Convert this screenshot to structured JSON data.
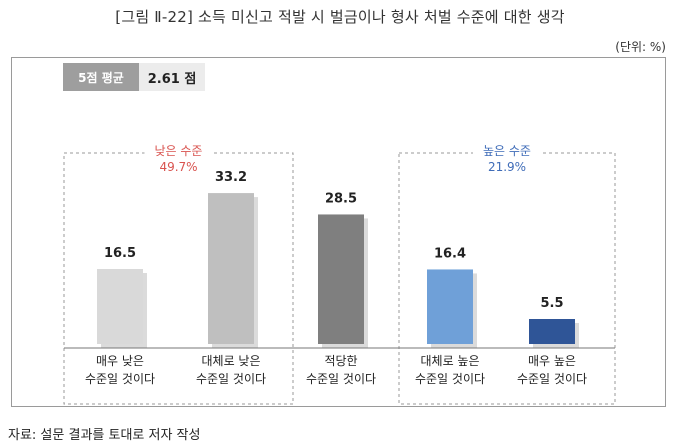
{
  "title": "[그림 Ⅱ-22] 소득 미신고 적발 시 벌금이나 형사 처벌 수준에 대한 생각",
  "unit": "(단위: %)",
  "average": {
    "label": "5점 평균",
    "value": "2.61 점"
  },
  "groups": [
    {
      "name": "낮은 수준",
      "value": "49.7%",
      "color": "#d9534f"
    },
    {
      "name": "높은 수준",
      "value": "21.9%",
      "color": "#3f6cb8"
    }
  ],
  "chart_data": {
    "type": "bar",
    "categories": [
      [
        "매우 낮은",
        "수준일 것이다"
      ],
      [
        "대체로 낮은",
        "수준일 것이다"
      ],
      [
        "적당한",
        "수준일 것이다"
      ],
      [
        "대체로 높은",
        "수준일 것이다"
      ],
      [
        "매우 높은",
        "수준일 것이다"
      ]
    ],
    "values": [
      16.5,
      33.2,
      28.5,
      16.4,
      5.5
    ],
    "value_labels": [
      "16.5",
      "33.2",
      "28.5",
      "16.4",
      "5.5"
    ],
    "colors": [
      "#d9d9d9",
      "#bfbfbf",
      "#7f7f7f",
      "#6fa0d8",
      "#2f5597"
    ],
    "title": "",
    "xlabel": "",
    "ylabel": "",
    "ylim": [
      0,
      40
    ],
    "grid": false
  },
  "footer": "자료: 설문 결과를 토대로 저자 작성"
}
